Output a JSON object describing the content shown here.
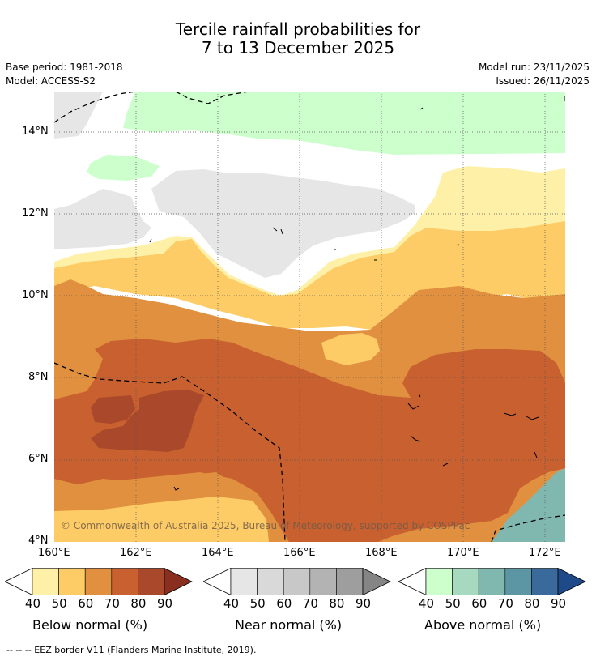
{
  "title": {
    "line1": "Tercile rainfall probabilities for",
    "line2": "7 to 13 December 2025"
  },
  "meta": {
    "base_period": "Base period: 1981-2018",
    "model": "Model: ACCESS-S2",
    "model_run": "Model run: 23/11/2025",
    "issued": "Issued: 26/11/2025"
  },
  "map": {
    "lat_ticks": [
      "14°N",
      "12°N",
      "10°N",
      "8°N",
      "6°N",
      "4°N"
    ],
    "lon_ticks": [
      "160°E",
      "162°E",
      "164°E",
      "166°E",
      "168°E",
      "170°E",
      "172°E"
    ],
    "copyright": "© Commonwealth of Australia 2025, Bureau of Meteorology, supported by COSPPac"
  },
  "colorbars": [
    {
      "label": "Below normal (%)",
      "ticks": [
        "40",
        "50",
        "60",
        "70",
        "80",
        "90"
      ],
      "colors": [
        "#fff0a8",
        "#fdcc66",
        "#e0903f",
        "#c8602f",
        "#a9482a",
        "#8a2f1f"
      ]
    },
    {
      "label": "Near normal (%)",
      "ticks": [
        "40",
        "50",
        "60",
        "70",
        "80",
        "90"
      ],
      "colors": [
        "#e6e6e6",
        "#d9d9d9",
        "#c8c8c8",
        "#b3b3b3",
        "#9e9e9e",
        "#858585"
      ]
    },
    {
      "label": "Above normal (%)",
      "ticks": [
        "40",
        "50",
        "60",
        "70",
        "80",
        "90"
      ],
      "colors": [
        "#ccffcc",
        "#a6d9c0",
        "#80b8b0",
        "#5c95a3",
        "#3a6a9c",
        "#1f4a8a"
      ]
    }
  ],
  "footnote": "--  --  -- EEZ border V11 (Flanders Marine Institute, 2019)."
}
